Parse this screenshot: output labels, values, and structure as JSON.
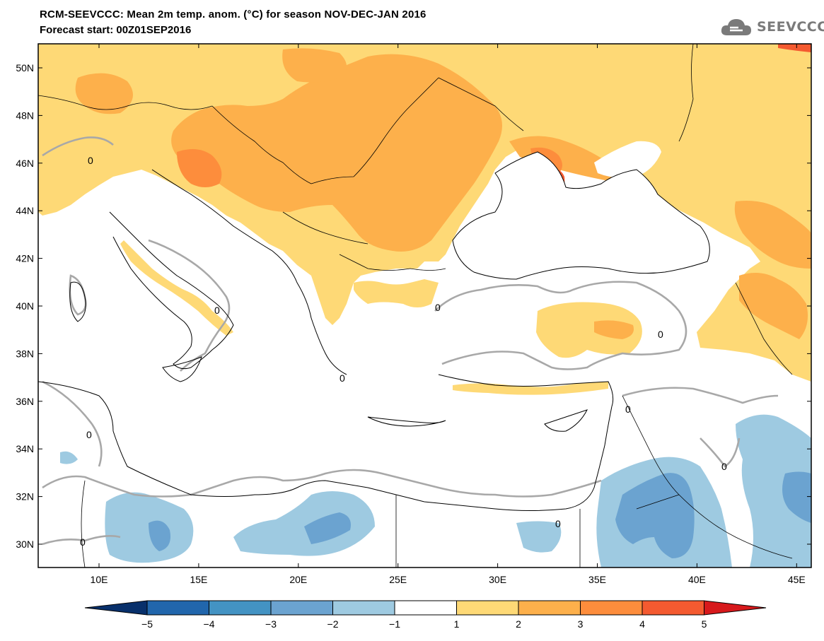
{
  "header": {
    "title": "RCM-SEEVCCC: Mean 2m temp. anom. (°C) for season NOV-DEC-JAN 2016",
    "subtitle": "Forecast start: 00Z01SEP2016",
    "logo_text": "SEEVCCC",
    "logo_icon": "cloud-icon"
  },
  "map": {
    "lat_labels": [
      "50N",
      "48N",
      "46N",
      "44N",
      "42N",
      "40N",
      "38N",
      "36N",
      "34N",
      "32N",
      "30N"
    ],
    "lon_labels": [
      "10E",
      "15E",
      "20E",
      "25E",
      "30E",
      "35E",
      "40E",
      "45E"
    ],
    "contour_label": "0"
  },
  "colorbar": {
    "labels": [
      "−5",
      "−4",
      "−3",
      "−2",
      "−1",
      "1",
      "2",
      "3",
      "4",
      "5"
    ],
    "colors": [
      "#08306b",
      "#2166ac",
      "#4393c3",
      "#6ba3d0",
      "#9ecae1",
      "#ffffff",
      "#fed976",
      "#fdb04b",
      "#fd8d3c",
      "#f45a30",
      "#d7191c"
    ]
  },
  "colors": {
    "anom_1_2": "#fed976",
    "anom_2_3": "#fdb04b",
    "anom_3_4": "#fd8d3c",
    "anom_4_5": "#f45a30",
    "anom_m1_m2": "#9ecae1",
    "anom_m2_m3": "#6ba3d0",
    "contour": "#a8a8a8"
  }
}
